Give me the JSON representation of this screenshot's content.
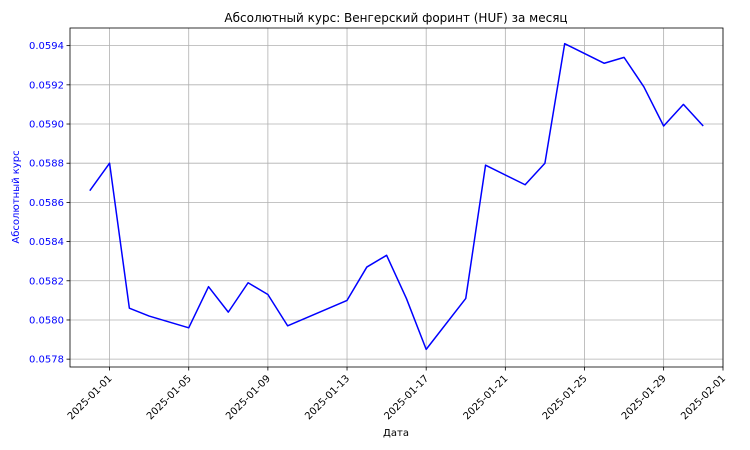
{
  "chart_data": {
    "type": "line",
    "title": "Абсолютный курс: Венгерский форинт (HUF) за месяц",
    "xlabel": "Дата",
    "ylabel": "Абсолютный курс",
    "ylabel_color": "#0000ff",
    "ytick_color": "#0000ff",
    "line_color": "#0000ff",
    "grid": true,
    "x_range": [
      "2024-12-30",
      "2025-02-01"
    ],
    "ylim": [
      0.05776,
      0.05949
    ],
    "xticks": [
      "2025-01-01",
      "2025-01-05",
      "2025-01-09",
      "2025-01-13",
      "2025-01-17",
      "2025-01-21",
      "2025-01-25",
      "2025-01-29",
      "2025-02-01"
    ],
    "yticks": [
      "0.0578",
      "0.0580",
      "0.0582",
      "0.0584",
      "0.0586",
      "0.0588",
      "0.0590",
      "0.0592",
      "0.0594"
    ],
    "series": [
      {
        "name": "HUF",
        "x": [
          "2024-12-31",
          "2025-01-01",
          "2025-01-02",
          "2025-01-03",
          "2025-01-05",
          "2025-01-06",
          "2025-01-07",
          "2025-01-08",
          "2025-01-09",
          "2025-01-10",
          "2025-01-13",
          "2025-01-14",
          "2025-01-15",
          "2025-01-16",
          "2025-01-17",
          "2025-01-19",
          "2025-01-20",
          "2025-01-22",
          "2025-01-23",
          "2025-01-24",
          "2025-01-26",
          "2025-01-27",
          "2025-01-28",
          "2025-01-29",
          "2025-01-30",
          "2025-01-31"
        ],
        "values": [
          0.05866,
          0.0588,
          0.05806,
          0.05802,
          0.05796,
          0.05817,
          0.05804,
          0.05819,
          0.05813,
          0.05797,
          0.0581,
          0.05827,
          0.05833,
          0.05811,
          0.05785,
          0.05811,
          0.05879,
          0.05869,
          0.0588,
          0.05941,
          0.05931,
          0.05934,
          0.05919,
          0.05899,
          0.0591,
          0.05899
        ]
      }
    ]
  }
}
